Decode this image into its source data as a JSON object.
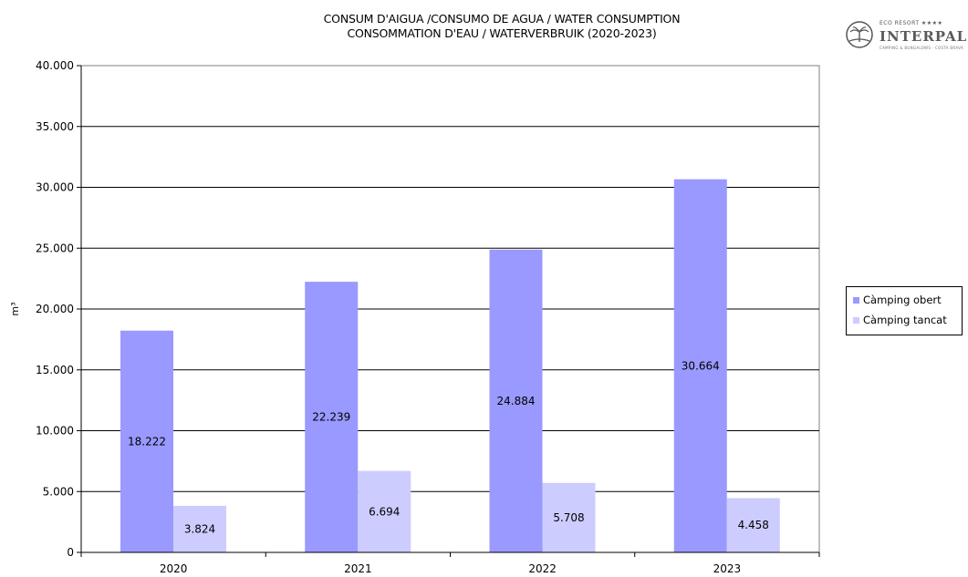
{
  "chart_data": {
    "type": "bar",
    "title": "CONSUM D'AIGUA /CONSUMO DE AGUA / WATER CONSUMPTION",
    "subtitle": "CONSOMMATION D'EAU / WATERVERBRUIK (2020-2023)",
    "xlabel": "",
    "ylabel": "m³",
    "categories": [
      "2020",
      "2021",
      "2022",
      "2023"
    ],
    "ylim": [
      0,
      40000
    ],
    "yticks": [
      0,
      5000,
      10000,
      15000,
      20000,
      25000,
      30000,
      35000,
      40000
    ],
    "ytick_labels": [
      "0",
      "5.000",
      "10.000",
      "15.000",
      "20.000",
      "25.000",
      "30.000",
      "35.000",
      "40.000"
    ],
    "grid": true,
    "legend_position": "right",
    "series": [
      {
        "name": "Càmping obert",
        "color": "#9999ff",
        "values": [
          18222,
          22239,
          24884,
          30664
        ],
        "labels": [
          "18.222",
          "22.239",
          "24.884",
          "30.664"
        ]
      },
      {
        "name": "Càmping tancat",
        "color": "#ccccff",
        "values": [
          3824,
          6694,
          5708,
          4458
        ],
        "labels": [
          "3.824",
          "6.694",
          "5.708",
          "4.458"
        ]
      }
    ]
  },
  "logo": {
    "tagline": "ECO RESORT ★★★★",
    "brand": "INTERPALS",
    "subline": "CAMPING & BUNGALOWS · COSTA BRAVA",
    "icon": "palm-tree-icon"
  }
}
